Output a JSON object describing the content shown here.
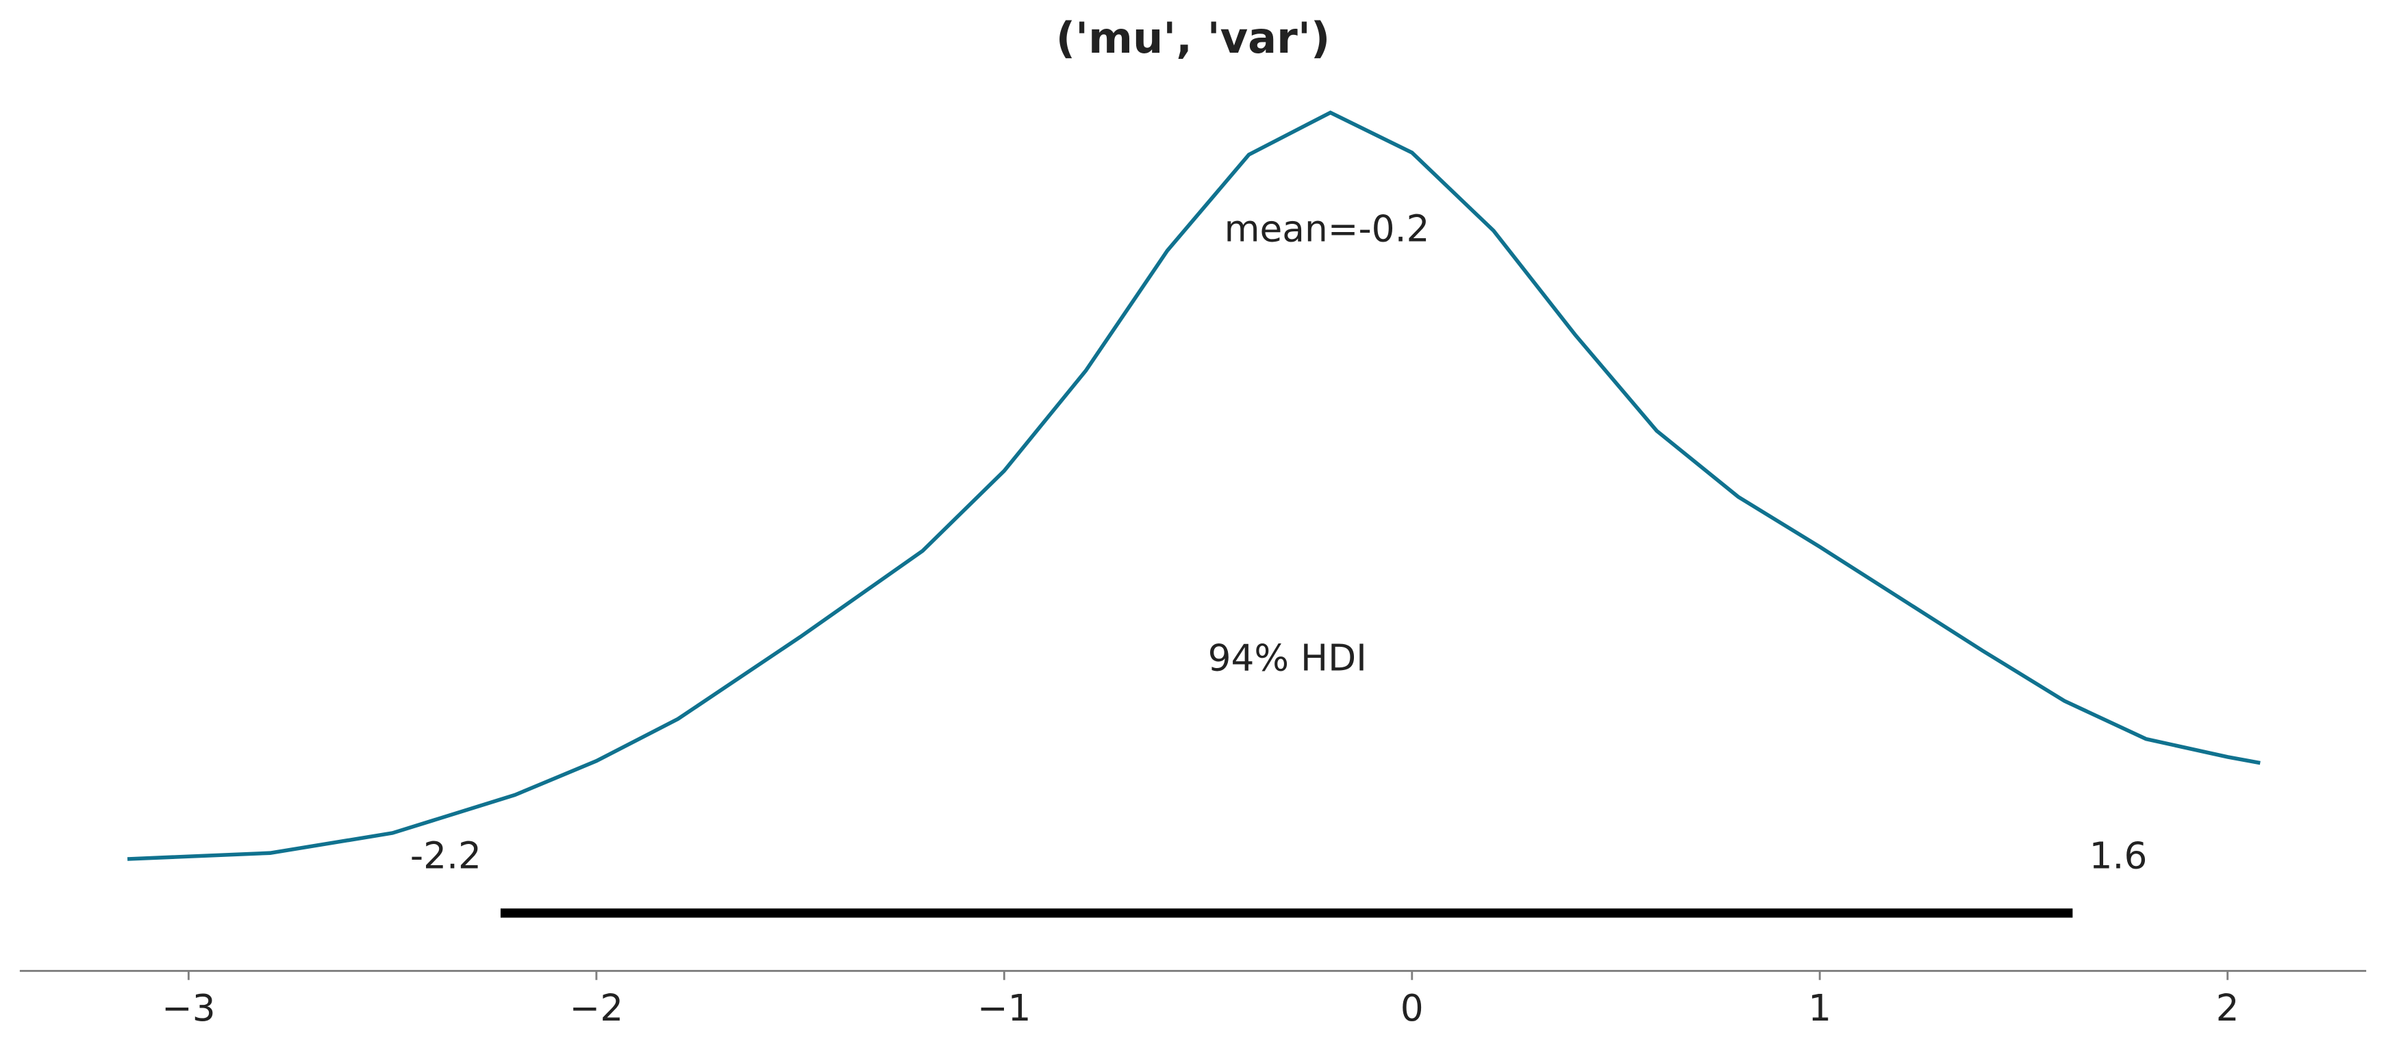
{
  "chart_data": {
    "type": "density",
    "title": "('mu', 'var')",
    "mean_label": "mean=-0.2",
    "hdi_label": "94% HDI",
    "hdi": {
      "values": [
        -2.235,
        1.62
      ],
      "value_labels": [
        "-2.2",
        "1.6"
      ],
      "color": "#000000"
    },
    "color": "#10728f",
    "x": [
      -3.15,
      -2.8,
      -2.5,
      -2.2,
      -2.0,
      -1.8,
      -1.5,
      -1.2,
      -1.0,
      -0.8,
      -0.6,
      -0.4,
      -0.2,
      0.0,
      0.2,
      0.4,
      0.6,
      0.8,
      1.0,
      1.2,
      1.4,
      1.6,
      1.8,
      2.0,
      2.08
    ],
    "values": [
      0.027,
      0.03,
      0.04,
      0.059,
      0.076,
      0.097,
      0.138,
      0.181,
      0.221,
      0.271,
      0.331,
      0.379,
      0.4,
      0.38,
      0.341,
      0.289,
      0.241,
      0.208,
      0.183,
      0.157,
      0.131,
      0.106,
      0.087,
      0.078,
      0.075
    ],
    "xlim": [
      -3.414,
      2.34
    ],
    "ylim": [
      0,
      0.4
    ],
    "xticks": [
      {
        "value": -3,
        "label": "−3"
      },
      {
        "value": -2,
        "label": "−2"
      },
      {
        "value": -1,
        "label": "−1"
      },
      0,
      1,
      2
    ]
  }
}
